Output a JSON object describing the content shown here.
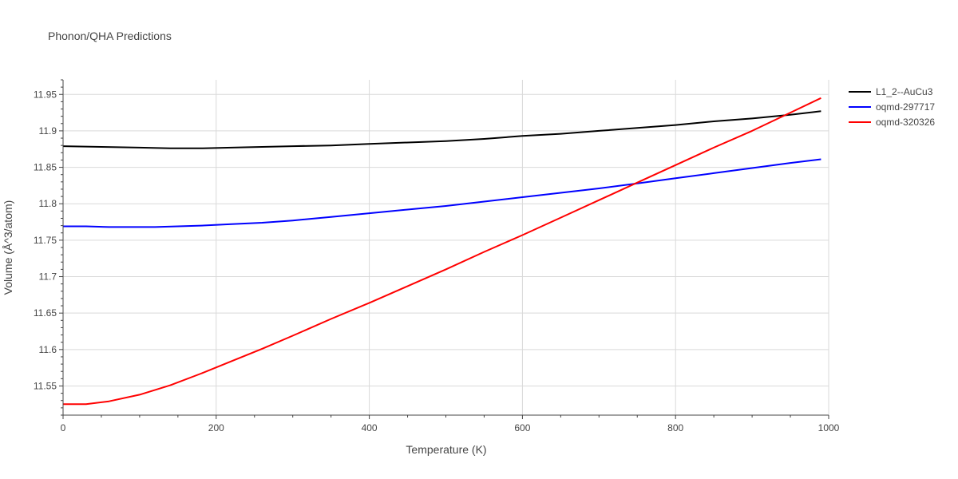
{
  "chart_data": {
    "type": "line",
    "title": "Phonon/QHA Predictions",
    "xlabel": "Temperature (K)",
    "ylabel": "Volume (Å^3/atom)",
    "xlim": [
      0,
      1000
    ],
    "ylim": [
      11.51,
      11.97
    ],
    "x_ticks": [
      0,
      200,
      400,
      600,
      800,
      1000
    ],
    "x_tick_labels": [
      "0",
      "200",
      "400",
      "600",
      "800",
      "1000"
    ],
    "y_ticks": [
      11.55,
      11.6,
      11.65,
      11.7,
      11.75,
      11.8,
      11.85,
      11.9,
      11.95
    ],
    "y_tick_labels": [
      "11.55",
      "11.6",
      "11.65",
      "11.7",
      "11.75",
      "11.8",
      "11.85",
      "11.9",
      "11.95"
    ],
    "grid": true,
    "legend_position": "top-right",
    "series": [
      {
        "name": "L1_2--AuCu3",
        "color": "#000000",
        "x": [
          0,
          50,
          100,
          140,
          180,
          220,
          260,
          300,
          350,
          400,
          450,
          500,
          550,
          600,
          650,
          700,
          750,
          800,
          850,
          900,
          950,
          990
        ],
        "y": [
          11.879,
          11.878,
          11.877,
          11.876,
          11.876,
          11.877,
          11.878,
          11.879,
          11.88,
          11.882,
          11.884,
          11.886,
          11.889,
          11.893,
          11.896,
          11.9,
          11.904,
          11.908,
          11.913,
          11.917,
          11.922,
          11.927
        ]
      },
      {
        "name": "oqmd-297717",
        "color": "#0000ff",
        "x": [
          0,
          30,
          60,
          90,
          120,
          150,
          180,
          220,
          260,
          300,
          350,
          400,
          450,
          500,
          550,
          600,
          650,
          700,
          750,
          800,
          850,
          900,
          950,
          990
        ],
        "y": [
          11.769,
          11.769,
          11.768,
          11.768,
          11.768,
          11.769,
          11.77,
          11.772,
          11.774,
          11.777,
          11.782,
          11.787,
          11.792,
          11.797,
          11.803,
          11.809,
          11.815,
          11.821,
          11.828,
          11.835,
          11.842,
          11.849,
          11.856,
          11.861
        ]
      },
      {
        "name": "oqmd-320326",
        "color": "#ff0000",
        "x": [
          0,
          30,
          60,
          100,
          140,
          180,
          220,
          260,
          300,
          350,
          400,
          450,
          500,
          550,
          600,
          650,
          700,
          750,
          800,
          850,
          900,
          950,
          990
        ],
        "y": [
          11.525,
          11.525,
          11.529,
          11.538,
          11.551,
          11.567,
          11.584,
          11.601,
          11.619,
          11.642,
          11.664,
          11.687,
          11.71,
          11.734,
          11.757,
          11.781,
          11.805,
          11.829,
          11.853,
          11.877,
          11.9,
          11.925,
          11.945
        ]
      }
    ]
  }
}
